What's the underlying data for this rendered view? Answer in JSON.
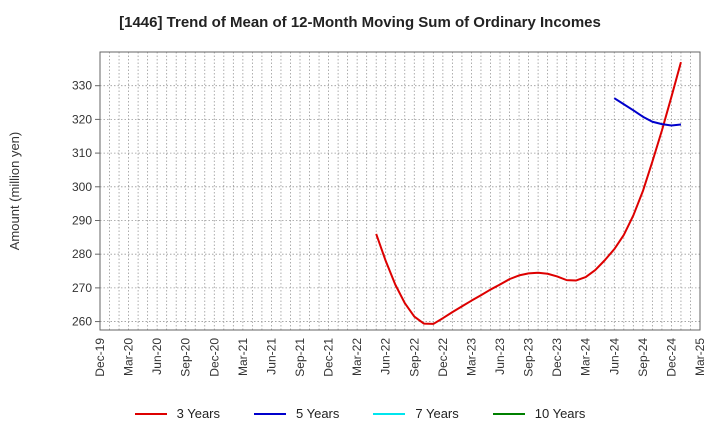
{
  "chart_data": {
    "type": "line",
    "title": "[1446]  Trend of Mean of 12-Month Moving Sum of Ordinary Incomes",
    "ylabel": "Amount (million yen)",
    "xlabel": "",
    "x_ticks": [
      "Dec-19",
      "Mar-20",
      "Jun-20",
      "Sep-20",
      "Dec-20",
      "Mar-21",
      "Jun-21",
      "Sep-21",
      "Dec-21",
      "Mar-22",
      "Jun-22",
      "Sep-22",
      "Dec-22",
      "Mar-23",
      "Jun-23",
      "Sep-23",
      "Dec-23",
      "Mar-24",
      "Jun-24",
      "Sep-24",
      "Dec-24",
      "Mar-25"
    ],
    "y_ticks": [
      260,
      270,
      280,
      290,
      300,
      310,
      320,
      330
    ],
    "ylim": [
      257.5,
      340
    ],
    "grid": true,
    "legend_position": "bottom",
    "series": [
      {
        "name": "3 Years",
        "color": "#dd0000",
        "points": [
          [
            "May-22",
            286.0
          ],
          [
            "Jun-22",
            278.0
          ],
          [
            "Jul-22",
            271.0
          ],
          [
            "Aug-22",
            265.5
          ],
          [
            "Sep-22",
            261.5
          ],
          [
            "Oct-22",
            259.4
          ],
          [
            "Nov-22",
            259.3
          ],
          [
            "Dec-22",
            261.0
          ],
          [
            "Jan-23",
            262.8
          ],
          [
            "Feb-23",
            264.5
          ],
          [
            "Mar-23",
            266.2
          ],
          [
            "Apr-23",
            267.8
          ],
          [
            "May-23",
            269.5
          ],
          [
            "Jun-23",
            271.0
          ],
          [
            "Jul-23",
            272.6
          ],
          [
            "Aug-23",
            273.7
          ],
          [
            "Sep-23",
            274.3
          ],
          [
            "Oct-23",
            274.5
          ],
          [
            "Nov-23",
            274.2
          ],
          [
            "Dec-23",
            273.4
          ],
          [
            "Jan-24",
            272.3
          ],
          [
            "Feb-24",
            272.2
          ],
          [
            "Mar-24",
            273.2
          ],
          [
            "Apr-24",
            275.3
          ],
          [
            "May-24",
            278.2
          ],
          [
            "Jun-24",
            281.5
          ],
          [
            "Jul-24",
            285.7
          ],
          [
            "Aug-24",
            291.5
          ],
          [
            "Sep-24",
            298.7
          ],
          [
            "Oct-24",
            307.5
          ],
          [
            "Nov-24",
            316.7
          ],
          [
            "Dec-24",
            326.7
          ],
          [
            "Jan-25",
            337.0
          ]
        ]
      },
      {
        "name": "5 Years",
        "color": "#0000cc",
        "points": [
          [
            "Jun-24",
            326.3
          ],
          [
            "Jul-24",
            324.5
          ],
          [
            "Aug-24",
            322.7
          ],
          [
            "Sep-24",
            320.8
          ],
          [
            "Oct-24",
            319.3
          ],
          [
            "Nov-24",
            318.6
          ],
          [
            "Dec-24",
            318.2
          ],
          [
            "Jan-25",
            318.5
          ]
        ]
      },
      {
        "name": "7 Years",
        "color": "#00e5ee",
        "points": []
      },
      {
        "name": "10 Years",
        "color": "#008000",
        "points": []
      }
    ]
  }
}
